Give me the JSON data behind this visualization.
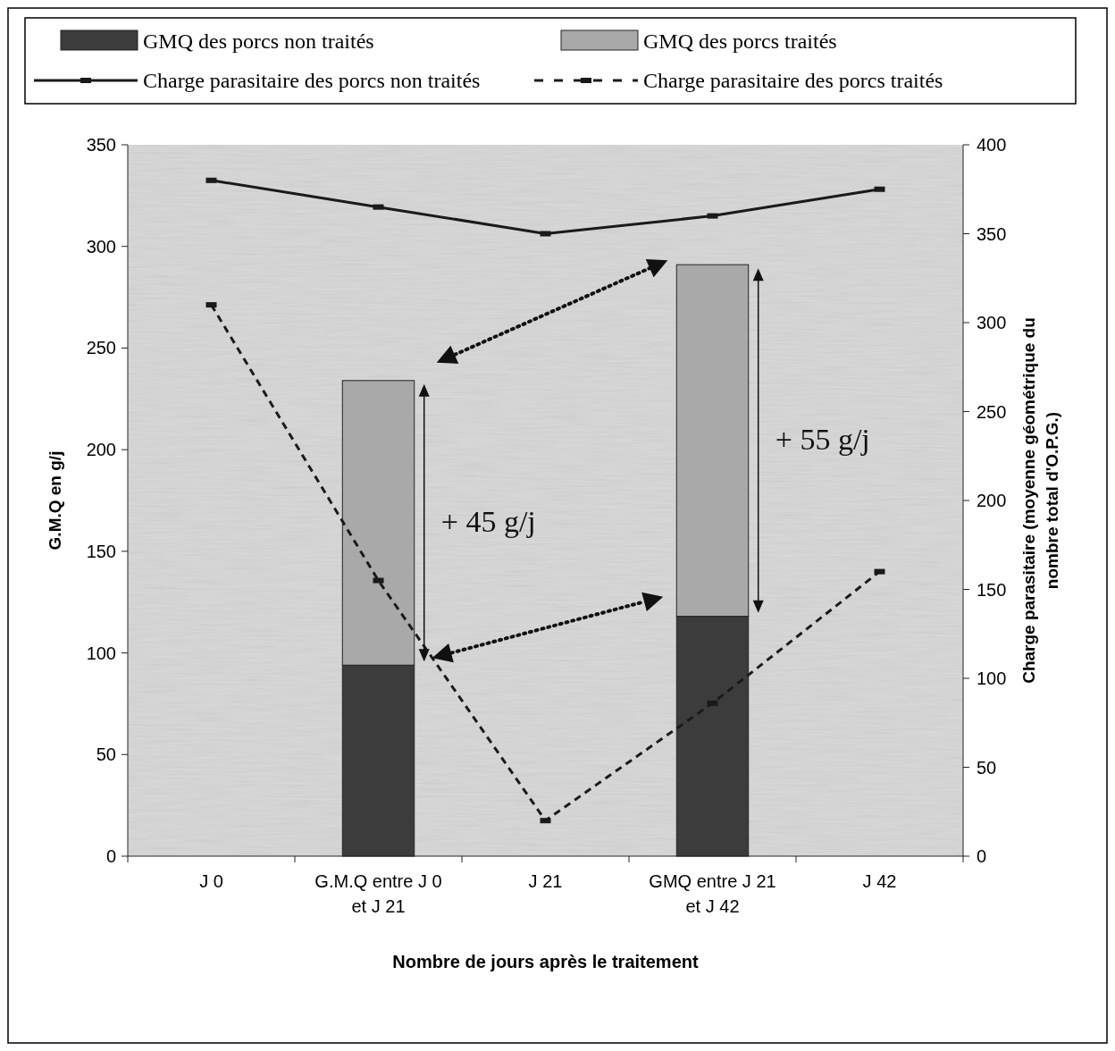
{
  "chart_data": {
    "type": "bar",
    "stacked": true,
    "xlabel": "Nombre de jours après le traitement",
    "ylabel": "G.M.Q en g/j",
    "y2label": "Charge parasitaire (moyenne géométrique du nombre total d'O.P.G.)",
    "categories": [
      "J 0",
      "G.M.Q entre J 0 et  J 21",
      "J 21",
      "GMQ entre  J 21 et J 42",
      "J 42"
    ],
    "series": [
      {
        "name": "GMQ des porcs non traités",
        "color": "#3c3c3c",
        "values": [
          null,
          94,
          null,
          118,
          null
        ]
      },
      {
        "name": "GMQ des porcs traités",
        "color": "#a9a9a9",
        "values": [
          null,
          140,
          null,
          173,
          null
        ]
      },
      {
        "name": "Charge parasitaire des porcs non traités",
        "type": "line",
        "axis": "y2",
        "color": "#1a1a1a",
        "line_style": "solid",
        "marker": "square",
        "values": [
          380,
          365,
          350,
          360,
          375
        ]
      },
      {
        "name": "Charge parasitaire des porcs traités",
        "type": "line",
        "axis": "y2",
        "color": "#1a1a1a",
        "line_style": "dashed",
        "marker": "square",
        "values": [
          310,
          155,
          20,
          86,
          160
        ]
      }
    ],
    "ylim": [
      0,
      350
    ],
    "yticks": [
      0,
      50,
      100,
      150,
      200,
      250,
      300,
      350
    ],
    "y2lim": [
      0,
      400
    ],
    "y2ticks": [
      0,
      50,
      100,
      150,
      200,
      250,
      300,
      350,
      400
    ],
    "annotations": [
      "+ 45 g/j",
      "+ 55 g/j"
    ],
    "legend": "top",
    "grid": false
  }
}
